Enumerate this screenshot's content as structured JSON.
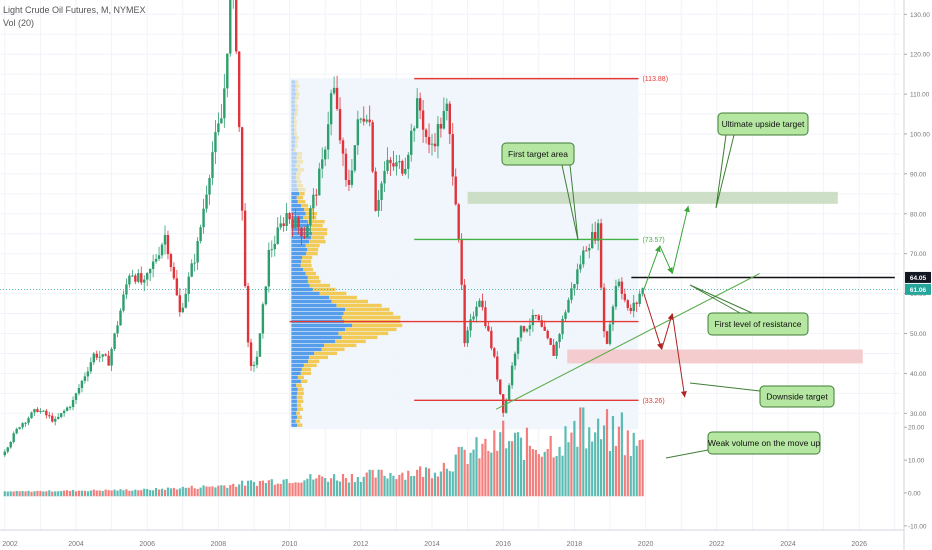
{
  "header": {
    "title": "Light Crude Oil Futures, M, NYMEX",
    "volume_label": "Vol (20)"
  },
  "chart_data": {
    "type": "candlestick",
    "x_ticks": [
      "2002",
      "2004",
      "2006",
      "2008",
      "2010",
      "2012",
      "2014",
      "2016",
      "2018",
      "2020",
      "2022",
      "2024",
      "2026"
    ],
    "x_range": [
      2002,
      2027
    ],
    "price_ticks": [
      "140.00",
      "130.00",
      "120.00",
      "110.00",
      "100.00",
      "90.00",
      "80.00",
      "70.00",
      "60.00",
      "50.00",
      "40.00",
      "30.00"
    ],
    "price_range": [
      25,
      147
    ],
    "volume_ticks": [
      "20.00",
      "10.00",
      "0.00",
      "-10.00"
    ],
    "volume_range": [
      -10.5,
      27
    ],
    "current_price": "64.05",
    "last_close": "61.06",
    "price_path": [
      [
        2002.0,
        19.5
      ],
      [
        2002.5,
        27
      ],
      [
        2003.0,
        31
      ],
      [
        2003.5,
        28
      ],
      [
        2004.0,
        33
      ],
      [
        2004.6,
        45
      ],
      [
        2005.0,
        43
      ],
      [
        2005.6,
        66
      ],
      [
        2006.0,
        62
      ],
      [
        2006.6,
        75
      ],
      [
        2007.0,
        55
      ],
      [
        2007.5,
        72
      ],
      [
        2007.9,
        95
      ],
      [
        2008.2,
        105
      ],
      [
        2008.5,
        145
      ],
      [
        2008.75,
        80
      ],
      [
        2008.95,
        40
      ],
      [
        2009.2,
        45
      ],
      [
        2009.5,
        70
      ],
      [
        2010.0,
        80
      ],
      [
        2010.5,
        75
      ],
      [
        2011.0,
        92
      ],
      [
        2011.3,
        113
      ],
      [
        2011.7,
        85
      ],
      [
        2012.0,
        102
      ],
      [
        2012.3,
        107
      ],
      [
        2012.5,
        82
      ],
      [
        2012.8,
        92
      ],
      [
        2013.3,
        92
      ],
      [
        2013.7,
        108
      ],
      [
        2014.0,
        96
      ],
      [
        2014.5,
        106
      ],
      [
        2014.8,
        80
      ],
      [
        2015.0,
        47
      ],
      [
        2015.4,
        60
      ],
      [
        2015.8,
        45
      ],
      [
        2016.1,
        30
      ],
      [
        2016.5,
        50
      ],
      [
        2017.0,
        54
      ],
      [
        2017.5,
        45
      ],
      [
        2017.9,
        58
      ],
      [
        2018.4,
        72
      ],
      [
        2018.75,
        76
      ],
      [
        2018.95,
        45
      ],
      [
        2019.3,
        65
      ],
      [
        2019.6,
        55
      ],
      [
        2019.85,
        58
      ],
      [
        2019.95,
        61
      ]
    ],
    "volume_envelope": [
      [
        2002,
        0.5
      ],
      [
        2006,
        1.2
      ],
      [
        2008,
        2.5
      ],
      [
        2010,
        5
      ],
      [
        2012,
        6
      ],
      [
        2014,
        8
      ],
      [
        2015,
        14
      ],
      [
        2016,
        18
      ],
      [
        2017,
        17
      ],
      [
        2018,
        20
      ],
      [
        2019,
        21
      ],
      [
        2020,
        16
      ]
    ],
    "volume_peaks": [
      [
        2018.2,
        26
      ],
      [
        2018.9,
        25.5
      ],
      [
        2019.3,
        24.5
      ],
      [
        2016.0,
        22
      ]
    ],
    "volume_profile": {
      "price_range": [
        26,
        114
      ],
      "peak_price": 53
    },
    "levels": [
      {
        "name": "high-level",
        "value": 113.88,
        "label": "(113.88)",
        "color": "#e53935",
        "x_range": [
          2013.5,
          2019.8
        ]
      },
      {
        "name": "first-target-level",
        "value": 73.57,
        "label": "(73.57)",
        "color": "#43b143",
        "x_range": [
          2013.5,
          2019.8
        ]
      },
      {
        "name": "resistance-level",
        "value": 64.05,
        "label": "",
        "color": "#111111",
        "x_range": [
          2019.6,
          2027.0
        ]
      },
      {
        "name": "support-level",
        "value": 53,
        "label": "",
        "color": "#e53935",
        "x_range": [
          2010.0,
          2019.8
        ]
      },
      {
        "name": "downside-level",
        "value": 33.26,
        "label": "(33.26)",
        "color": "#e53935",
        "x_range": [
          2013.5,
          2019.8
        ]
      }
    ],
    "zones": [
      {
        "name": "upside-target-zone",
        "y_range": [
          82.5,
          85.5
        ],
        "x_range": [
          2015.0,
          2025.4
        ],
        "color": "#c8dcc0"
      },
      {
        "name": "downside-target-zone",
        "y_range": [
          42.5,
          46.0
        ],
        "x_range": [
          2017.8,
          2026.1
        ],
        "color": "#f4c6c9"
      }
    ],
    "trendline": {
      "from": [
        2015.8,
        31
      ],
      "to": [
        2023.2,
        65
      ],
      "color": "#5fae4f"
    },
    "annotations": [
      {
        "name": "first-target-area-note",
        "text": "First target area"
      },
      {
        "name": "ultimate-upside-target-note",
        "text": "Ultimate upside target"
      },
      {
        "name": "first-level-of-resistance-note",
        "text": "First level of resistance"
      },
      {
        "name": "downside-target-note",
        "text": "Downside target"
      },
      {
        "name": "weak-volume-note",
        "text": "Weak volume on the move up"
      }
    ],
    "colors": {
      "up": "#26a69a",
      "down": "#ef5350",
      "up_candle": "#2e9e6e",
      "down_candle": "#e0343c",
      "profile_up": "#3b8ee8",
      "profile_down": "#f2c23b"
    }
  }
}
